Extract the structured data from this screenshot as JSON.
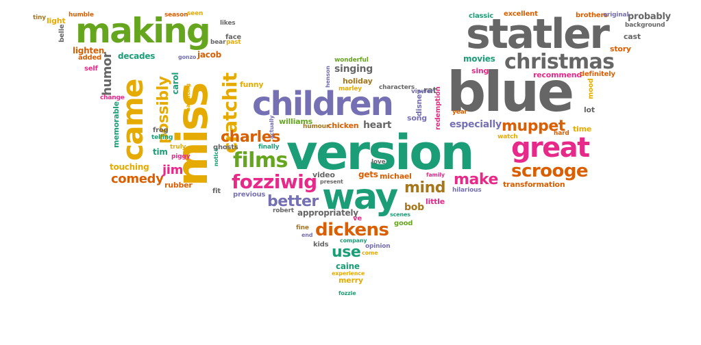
{
  "colors": {
    "gray": "#666666",
    "teal": "#1b9e77",
    "orange": "#d95f02",
    "purple": "#7570b3",
    "pink": "#e7298a",
    "green": "#66a61e",
    "gold": "#e6ab02",
    "brown": "#a6761d"
  },
  "words": [
    {
      "text": "version",
      "color": "teal"
    },
    {
      "text": "blue",
      "color": "gray"
    },
    {
      "text": "statler",
      "color": "gray"
    },
    {
      "text": "miss",
      "color": "gold"
    },
    {
      "text": "way",
      "color": "teal"
    },
    {
      "text": "children",
      "color": "purple"
    },
    {
      "text": "making",
      "color": "green"
    },
    {
      "text": "came",
      "color": "gold"
    },
    {
      "text": "great",
      "color": "pink"
    },
    {
      "text": "christmas",
      "color": "gray"
    },
    {
      "text": "cratchit",
      "color": "gold"
    },
    {
      "text": "films",
      "color": "green"
    },
    {
      "text": "fozziwig",
      "color": "pink"
    },
    {
      "text": "dickens",
      "color": "orange"
    },
    {
      "text": "possibly",
      "color": "gold"
    },
    {
      "text": "scrooge",
      "color": "orange"
    },
    {
      "text": "charles",
      "color": "orange"
    },
    {
      "text": "muppet",
      "color": "orange"
    },
    {
      "text": "make",
      "color": "pink"
    },
    {
      "text": "better",
      "color": "purple"
    },
    {
      "text": "mind",
      "color": "brown"
    },
    {
      "text": "use",
      "color": "teal"
    },
    {
      "text": "humor",
      "color": "gray"
    },
    {
      "text": "comedy",
      "color": "orange"
    },
    {
      "text": "jim",
      "color": "pink"
    },
    {
      "text": "especially",
      "color": "purple"
    },
    {
      "text": "singing",
      "color": "gray"
    },
    {
      "text": "heart",
      "color": "gray"
    },
    {
      "text": "bob",
      "color": "brown"
    },
    {
      "text": "memorable",
      "color": "teal"
    },
    {
      "text": "movies",
      "color": "teal"
    },
    {
      "text": "decades",
      "color": "teal"
    },
    {
      "text": "lighten",
      "color": "orange"
    },
    {
      "text": "jacob",
      "color": "orange"
    },
    {
      "text": "carol",
      "color": "teal"
    },
    {
      "text": "touching",
      "color": "gold"
    },
    {
      "text": "tim",
      "color": "teal"
    },
    {
      "text": "michael",
      "color": "orange"
    },
    {
      "text": "video",
      "color": "gray"
    },
    {
      "text": "gets",
      "color": "orange"
    },
    {
      "text": "rubber",
      "color": "orange"
    },
    {
      "text": "appropriately",
      "color": "gray"
    },
    {
      "text": "caine",
      "color": "teal"
    },
    {
      "text": "merry",
      "color": "gold"
    },
    {
      "text": "williams",
      "color": "green"
    },
    {
      "text": "chicken",
      "color": "orange"
    },
    {
      "text": "song",
      "color": "purple"
    },
    {
      "text": "disney",
      "color": "purple"
    },
    {
      "text": "redemption",
      "color": "pink"
    },
    {
      "text": "rat",
      "color": "gray"
    },
    {
      "text": "funny",
      "color": "gold"
    },
    {
      "text": "holiday",
      "color": "brown"
    },
    {
      "text": "probably",
      "color": "gray"
    },
    {
      "text": "cast",
      "color": "gray"
    },
    {
      "text": "story",
      "color": "orange"
    },
    {
      "text": "excellent",
      "color": "orange"
    },
    {
      "text": "classic",
      "color": "teal"
    },
    {
      "text": "brothers",
      "color": "orange"
    },
    {
      "text": "original",
      "color": "purple"
    },
    {
      "text": "background",
      "color": "gray"
    },
    {
      "text": "sing",
      "color": "pink"
    },
    {
      "text": "recommend",
      "color": "pink"
    },
    {
      "text": "definitely",
      "color": "orange"
    },
    {
      "text": "lot",
      "color": "gray"
    },
    {
      "text": "time",
      "color": "gold"
    },
    {
      "text": "hard",
      "color": "orange"
    },
    {
      "text": "transformation",
      "color": "orange"
    },
    {
      "text": "hilarious",
      "color": "purple"
    },
    {
      "text": "little",
      "color": "pink"
    },
    {
      "text": "watch",
      "color": "gold"
    },
    {
      "text": "year",
      "color": "orange"
    },
    {
      "text": "mood",
      "color": "gold"
    },
    {
      "text": "viewer",
      "color": "purple"
    },
    {
      "text": "family",
      "color": "pink"
    },
    {
      "text": "characters",
      "color": "gray"
    },
    {
      "text": "marley",
      "color": "gold"
    },
    {
      "text": "wonderful",
      "color": "green"
    },
    {
      "text": "henson",
      "color": "purple"
    },
    {
      "text": "humour",
      "color": "brown"
    },
    {
      "text": "love",
      "color": "gray"
    },
    {
      "text": "ve",
      "color": "pink"
    },
    {
      "text": "scenes",
      "color": "teal"
    },
    {
      "text": "good",
      "color": "green"
    },
    {
      "text": "company",
      "color": "teal"
    },
    {
      "text": "opinion",
      "color": "purple"
    },
    {
      "text": "kids",
      "color": "gray"
    },
    {
      "text": "come",
      "color": "gold"
    },
    {
      "text": "experience",
      "color": "gold"
    },
    {
      "text": "fozzie",
      "color": "teal"
    },
    {
      "text": "fine",
      "color": "brown"
    },
    {
      "text": "end",
      "color": "purple"
    },
    {
      "text": "present",
      "color": "gray"
    },
    {
      "text": "robert",
      "color": "gray"
    },
    {
      "text": "previous",
      "color": "purple"
    },
    {
      "text": "fit",
      "color": "gray"
    },
    {
      "text": "piggy",
      "color": "pink"
    },
    {
      "text": "truly",
      "color": "gold"
    },
    {
      "text": "frog",
      "color": "gray"
    },
    {
      "text": "telling",
      "color": "teal"
    },
    {
      "text": "ghosts",
      "color": "gray"
    },
    {
      "text": "finally",
      "color": "teal"
    },
    {
      "text": "actually",
      "color": "purple"
    },
    {
      "text": "notice",
      "color": "teal"
    },
    {
      "text": "narrating",
      "color": "gold"
    },
    {
      "text": "face",
      "color": "gray"
    },
    {
      "text": "bear",
      "color": "gray"
    },
    {
      "text": "past",
      "color": "gold"
    },
    {
      "text": "likes",
      "color": "gray"
    },
    {
      "text": "gonzo",
      "color": "purple"
    },
    {
      "text": "season",
      "color": "orange"
    },
    {
      "text": "seen",
      "color": "gold"
    },
    {
      "text": "humble",
      "color": "orange"
    },
    {
      "text": "tiny",
      "color": "brown"
    },
    {
      "text": "light",
      "color": "gold"
    },
    {
      "text": "belle",
      "color": "gray"
    },
    {
      "text": "added",
      "color": "orange"
    },
    {
      "text": "self",
      "color": "pink"
    },
    {
      "text": "change",
      "color": "pink"
    }
  ]
}
